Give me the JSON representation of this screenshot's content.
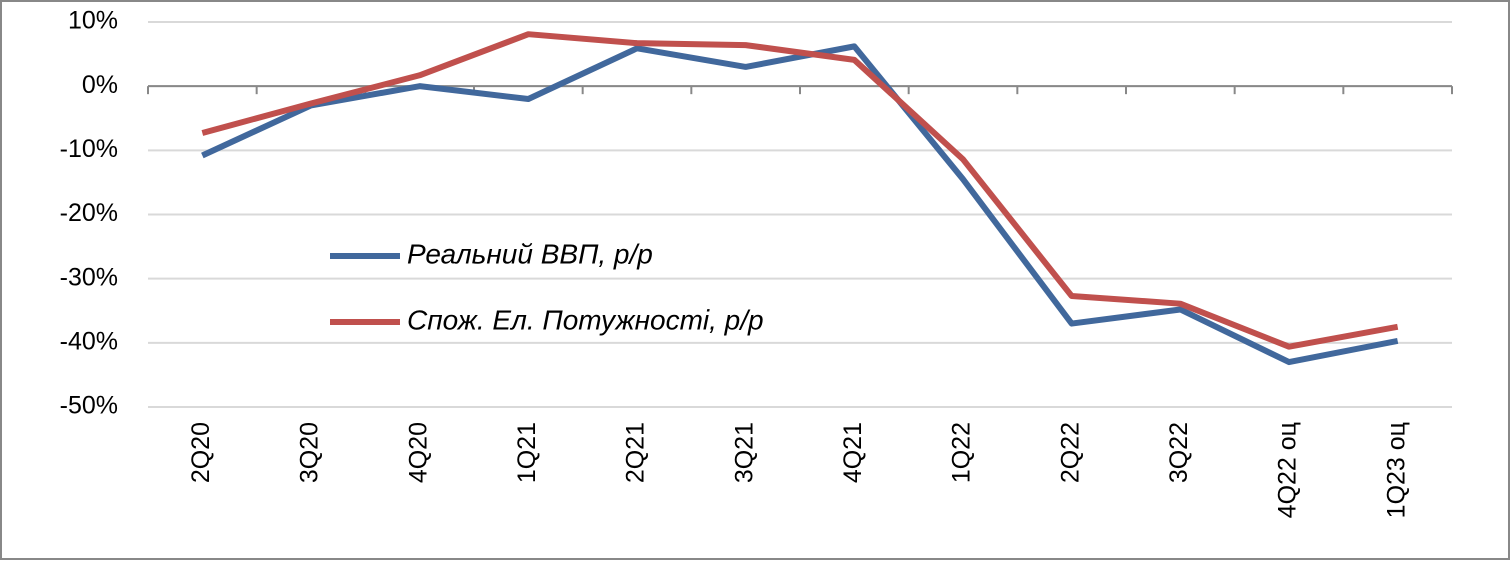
{
  "chart_data": {
    "type": "line",
    "categories": [
      "2Q20",
      "3Q20",
      "4Q20",
      "1Q21",
      "2Q21",
      "3Q21",
      "4Q21",
      "1Q22",
      "2Q22",
      "3Q22",
      "4Q22 оц",
      "1Q23 оц"
    ],
    "series": [
      {
        "name": "Реальний ВВП, р/р",
        "color": "#41689c",
        "values": [
          -10.8,
          -3,
          0,
          -2,
          5.9,
          3,
          6.2,
          -14.5,
          -37,
          -34.8,
          -43,
          -39.7
        ]
      },
      {
        "name": "Спож. Ел. Потужності, р/р",
        "color": "#c0504d",
        "values": [
          -7.3,
          -2.7,
          1.7,
          8.1,
          6.7,
          6.4,
          4.1,
          -11.4,
          -32.7,
          -33.9,
          -40.6,
          -37.5
        ]
      }
    ],
    "ylim": [
      -50,
      10
    ],
    "yticks": [
      {
        "value": 10,
        "label": "10%"
      },
      {
        "value": 0,
        "label": "0%"
      },
      {
        "value": -10,
        "label": "-10%"
      },
      {
        "value": -20,
        "label": "-20%"
      },
      {
        "value": -30,
        "label": "-30%"
      },
      {
        "value": -40,
        "label": "-40%"
      },
      {
        "value": -50,
        "label": "-50%"
      }
    ],
    "grid": true
  }
}
